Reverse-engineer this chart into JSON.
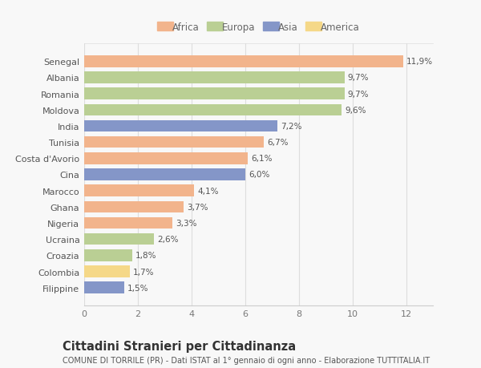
{
  "categories": [
    "Senegal",
    "Albania",
    "Romania",
    "Moldova",
    "India",
    "Tunisia",
    "Costa d'Avorio",
    "Cina",
    "Marocco",
    "Ghana",
    "Nigeria",
    "Ucraina",
    "Croazia",
    "Colombia",
    "Filippine"
  ],
  "values": [
    11.9,
    9.7,
    9.7,
    9.6,
    7.2,
    6.7,
    6.1,
    6.0,
    4.1,
    3.7,
    3.3,
    2.6,
    1.8,
    1.7,
    1.5
  ],
  "labels": [
    "11,9%",
    "9,7%",
    "9,7%",
    "9,6%",
    "7,2%",
    "6,7%",
    "6,1%",
    "6,0%",
    "4,1%",
    "3,7%",
    "3,3%",
    "2,6%",
    "1,8%",
    "1,7%",
    "1,5%"
  ],
  "continent": [
    "Africa",
    "Europa",
    "Europa",
    "Europa",
    "Asia",
    "Africa",
    "Africa",
    "Asia",
    "Africa",
    "Africa",
    "Africa",
    "Europa",
    "Europa",
    "America",
    "Asia"
  ],
  "colors": {
    "Africa": "#F2B48C",
    "Europa": "#BACF94",
    "Asia": "#8496C8",
    "America": "#F5D888"
  },
  "legend_order": [
    "Africa",
    "Europa",
    "Asia",
    "America"
  ],
  "title": "Cittadini Stranieri per Cittadinanza",
  "subtitle": "COMUNE DI TORRILE (PR) - Dati ISTAT al 1° gennaio di ogni anno - Elaborazione TUTTITALIA.IT",
  "xlim": [
    0,
    13.0
  ],
  "xticks": [
    0,
    2,
    4,
    6,
    8,
    10,
    12
  ],
  "background_color": "#f8f8f8",
  "bar_height": 0.72,
  "label_fontsize": 7.5,
  "title_fontsize": 10.5,
  "subtitle_fontsize": 7.0,
  "ytick_fontsize": 8.0,
  "xtick_fontsize": 8.0,
  "legend_fontsize": 8.5
}
